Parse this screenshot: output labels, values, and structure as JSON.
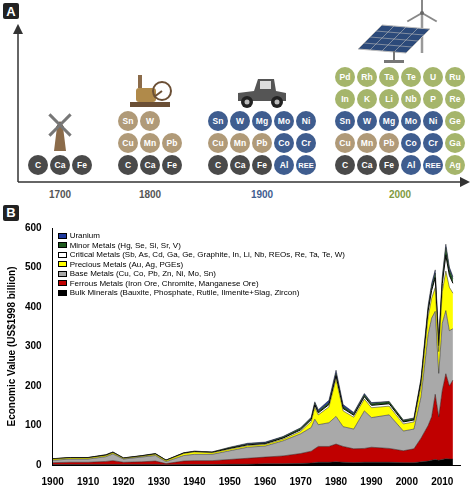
{
  "diagram": {
    "panel_label": "A",
    "eras": [
      {
        "year": "1700",
        "year_color": "#555555",
        "rows": [
          [
            {
              "symbol": "C",
              "color": "#4a4a4a"
            },
            {
              "symbol": "Ca",
              "color": "#4a4a4a"
            },
            {
              "symbol": "Fe",
              "color": "#4a4a4a"
            }
          ]
        ]
      },
      {
        "year": "1800",
        "year_color": "#555555",
        "rows": [
          [
            {
              "symbol": "Sn",
              "color": "#b09a78"
            },
            {
              "symbol": "W",
              "color": "#b09a78"
            }
          ],
          [
            {
              "symbol": "Cu",
              "color": "#b09a78"
            },
            {
              "symbol": "Mn",
              "color": "#b09a78"
            },
            {
              "symbol": "Pb",
              "color": "#b09a78"
            }
          ],
          [
            {
              "symbol": "C",
              "color": "#4a4a4a"
            },
            {
              "symbol": "Ca",
              "color": "#4a4a4a"
            },
            {
              "symbol": "Fe",
              "color": "#4a4a4a"
            }
          ]
        ]
      },
      {
        "year": "1900",
        "year_color": "#3f5d8f",
        "rows": [
          [
            {
              "symbol": "Sn",
              "color": "#3f5d8f"
            },
            {
              "symbol": "W",
              "color": "#3f5d8f"
            },
            {
              "symbol": "Mg",
              "color": "#3f5d8f"
            },
            {
              "symbol": "Mo",
              "color": "#3f5d8f"
            },
            {
              "symbol": "Ni",
              "color": "#3f5d8f"
            }
          ],
          [
            {
              "symbol": "Cu",
              "color": "#b09a78"
            },
            {
              "symbol": "Mn",
              "color": "#b09a78"
            },
            {
              "symbol": "Pb",
              "color": "#b09a78"
            },
            {
              "symbol": "Co",
              "color": "#3f5d8f"
            },
            {
              "symbol": "Cr",
              "color": "#3f5d8f"
            }
          ],
          [
            {
              "symbol": "C",
              "color": "#4a4a4a"
            },
            {
              "symbol": "Ca",
              "color": "#4a4a4a"
            },
            {
              "symbol": "Fe",
              "color": "#4a4a4a"
            },
            {
              "symbol": "Al",
              "color": "#3f5d8f"
            },
            {
              "symbol": "REE",
              "color": "#3f5d8f"
            }
          ]
        ]
      },
      {
        "year": "2000",
        "year_color": "#7f9a3f",
        "rows": [
          [
            {
              "symbol": "Pd",
              "color": "#a5b56b"
            },
            {
              "symbol": "Rh",
              "color": "#a5b56b"
            },
            {
              "symbol": "Ta",
              "color": "#a5b56b"
            },
            {
              "symbol": "Te",
              "color": "#a5b56b"
            },
            {
              "symbol": "U",
              "color": "#a5b56b"
            },
            {
              "symbol": "Ru",
              "color": "#a5b56b"
            }
          ],
          [
            {
              "symbol": "In",
              "color": "#a5b56b"
            },
            {
              "symbol": "K",
              "color": "#a5b56b"
            },
            {
              "symbol": "Li",
              "color": "#a5b56b"
            },
            {
              "symbol": "Nb",
              "color": "#a5b56b"
            },
            {
              "symbol": "P",
              "color": "#a5b56b"
            },
            {
              "symbol": "Re",
              "color": "#a5b56b"
            }
          ],
          [
            {
              "symbol": "Sn",
              "color": "#3f5d8f"
            },
            {
              "symbol": "W",
              "color": "#3f5d8f"
            },
            {
              "symbol": "Mg",
              "color": "#3f5d8f"
            },
            {
              "symbol": "Mo",
              "color": "#3f5d8f"
            },
            {
              "symbol": "Ni",
              "color": "#3f5d8f"
            },
            {
              "symbol": "Ge",
              "color": "#a5b56b"
            }
          ],
          [
            {
              "symbol": "Cu",
              "color": "#b09a78"
            },
            {
              "symbol": "Mn",
              "color": "#b09a78"
            },
            {
              "symbol": "Pb",
              "color": "#b09a78"
            },
            {
              "symbol": "Co",
              "color": "#3f5d8f"
            },
            {
              "symbol": "Cr",
              "color": "#3f5d8f"
            },
            {
              "symbol": "Ga",
              "color": "#a5b56b"
            }
          ],
          [
            {
              "symbol": "C",
              "color": "#4a4a4a"
            },
            {
              "symbol": "Ca",
              "color": "#4a4a4a"
            },
            {
              "symbol": "Fe",
              "color": "#4a4a4a"
            },
            {
              "symbol": "Al",
              "color": "#3f5d8f"
            },
            {
              "symbol": "REE",
              "color": "#3f5d8f"
            },
            {
              "symbol": "Ag",
              "color": "#a5b56b"
            }
          ]
        ]
      }
    ]
  },
  "chart_data": {
    "panel_label": "B",
    "type": "area",
    "stacked": true,
    "grid": false,
    "legend": "upper left",
    "y_label": "Economic Value (US$1998 billion)",
    "x": [
      1900,
      1905,
      1910,
      1915,
      1917,
      1920,
      1925,
      1929,
      1932,
      1937,
      1940,
      1945,
      1950,
      1955,
      1960,
      1965,
      1970,
      1973,
      1974,
      1975,
      1978,
      1980,
      1982,
      1985,
      1988,
      1990,
      1995,
      1999,
      2002,
      2004,
      2006,
      2007,
      2008,
      2009,
      2010,
      2011,
      2012,
      2013
    ],
    "xlim": [
      1900,
      2015
    ],
    "xticks": [
      1900,
      1910,
      1920,
      1930,
      1940,
      1950,
      1960,
      1970,
      1980,
      1990,
      2000,
      2010
    ],
    "ylim": [
      0,
      600
    ],
    "yticks": [
      0,
      100,
      200,
      300,
      400,
      500,
      600
    ],
    "series": [
      {
        "name": "Bulk Minerals (Bauxite, Phosphate, Rutile, Ilmenite+Slag, Zircon)",
        "color": "#000000",
        "values": [
          1,
          1,
          1,
          1,
          1,
          1,
          1,
          1,
          0.5,
          1,
          1,
          1,
          2,
          2,
          3,
          3,
          4,
          5,
          6,
          7,
          7,
          8,
          7,
          6,
          7,
          7,
          7,
          6,
          6,
          8,
          10,
          12,
          14,
          12,
          14,
          16,
          15,
          15
        ]
      },
      {
        "name": "Ferrous Metals (Iron Ore, Chromite, Manganese Ore)",
        "color": "#c00000",
        "values": [
          5,
          6,
          6,
          8,
          10,
          6,
          7,
          9,
          3,
          9,
          10,
          10,
          12,
          15,
          17,
          20,
          25,
          30,
          35,
          40,
          40,
          45,
          40,
          35,
          35,
          38,
          35,
          30,
          35,
          60,
          90,
          110,
          165,
          110,
          175,
          215,
          185,
          200
        ]
      },
      {
        "name": "Base Metals (Cu, Co, Pb, Zn, Ni, Mo, Sn)",
        "color": "#a9a9a9",
        "values": [
          6,
          8,
          8,
          12,
          17,
          8,
          12,
          14,
          5,
          14,
          16,
          16,
          22,
          28,
          28,
          38,
          50,
          60,
          75,
          55,
          60,
          70,
          50,
          50,
          95,
          75,
          85,
          50,
          50,
          105,
          230,
          250,
          210,
          110,
          170,
          160,
          140,
          130
        ]
      },
      {
        "name": "Precious Metals (Au, Ag, PGEs)",
        "color": "#ffff00",
        "values": [
          3,
          3,
          3,
          3,
          3,
          2,
          2,
          3,
          3,
          5,
          6,
          4,
          4,
          4,
          4,
          4,
          6,
          15,
          30,
          25,
          40,
          95,
          40,
          30,
          30,
          25,
          22,
          18,
          18,
          28,
          45,
          50,
          60,
          55,
          80,
          100,
          110,
          90
        ]
      },
      {
        "name": "Critical Metals (Sb, As, Cd, Ga, Ge, Graphite, In, Li, Nb, REOs, Re, Ta, Te, W)",
        "color": "#ffffff",
        "values": [
          0.5,
          0.5,
          0.5,
          1,
          1,
          0.5,
          1,
          1,
          0.5,
          1,
          1,
          1,
          2,
          2,
          2,
          3,
          4,
          5,
          6,
          5,
          6,
          8,
          6,
          5,
          6,
          6,
          6,
          5,
          5,
          10,
          15,
          20,
          25,
          15,
          20,
          40,
          30,
          25
        ]
      },
      {
        "name": "Minor Metals (Hg, Se, Si, Sr, V)",
        "color": "#1e5a1e",
        "values": [
          0.5,
          0.5,
          0.5,
          1,
          1,
          0.5,
          0.5,
          1,
          0.5,
          1,
          1,
          1,
          2,
          2,
          2,
          3,
          4,
          4,
          5,
          4,
          5,
          6,
          5,
          4,
          5,
          5,
          5,
          4,
          4,
          6,
          8,
          10,
          12,
          8,
          12,
          20,
          15,
          12
        ]
      },
      {
        "name": "Uranium",
        "color": "#1f3a9e",
        "values": [
          0,
          0,
          0,
          0,
          0,
          0,
          0,
          0,
          0,
          0,
          0,
          0,
          1,
          2,
          2,
          1,
          1,
          2,
          3,
          4,
          6,
          8,
          5,
          3,
          3,
          2,
          1,
          1,
          1,
          2,
          6,
          8,
          8,
          6,
          6,
          8,
          6,
          5
        ]
      }
    ]
  }
}
